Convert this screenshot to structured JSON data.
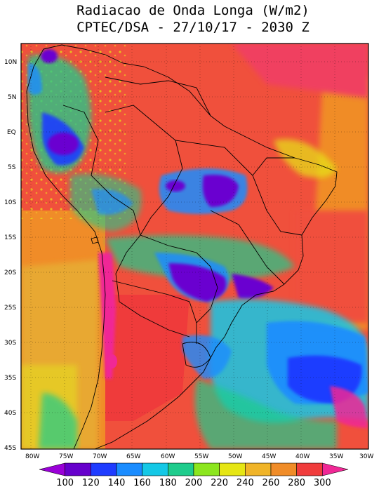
{
  "title": "Radiacao de Onda Longa (W/m2)",
  "subtitle": "CPTEC/DSA - 27/10/17 - 2030 Z",
  "lat_labels": [
    "10N",
    "5N",
    "EQ",
    "5S",
    "10S",
    "15S",
    "20S",
    "25S",
    "30S",
    "35S",
    "40S",
    "45S"
  ],
  "lon_labels": [
    "80W",
    "75W",
    "70W",
    "65W",
    "60W",
    "55W",
    "50W",
    "45W",
    "40W",
    "35W",
    "30W"
  ],
  "colorbar": {
    "labels": [
      "100",
      "120",
      "140",
      "160",
      "180",
      "200",
      "220",
      "240",
      "260",
      "280",
      "300"
    ],
    "colors": [
      "#9a00d8",
      "#6600cc",
      "#1f3cff",
      "#1a8cff",
      "#14c8e6",
      "#1ecc8c",
      "#8ce61e",
      "#e6e614",
      "#f0b428",
      "#f08c28",
      "#f03c3c",
      "#f02896"
    ]
  },
  "colors": {
    "ocean_warm": "#f05a3c",
    "ocean_mid": "#f08c28",
    "land_hot": "#ef3b3b",
    "cold_cloud": "#6a00d0",
    "very_cold": "#9a00d8",
    "cyan": "#14c8e6",
    "green": "#1ecc8c",
    "yellow": "#e6e614",
    "pink": "#f02896"
  }
}
